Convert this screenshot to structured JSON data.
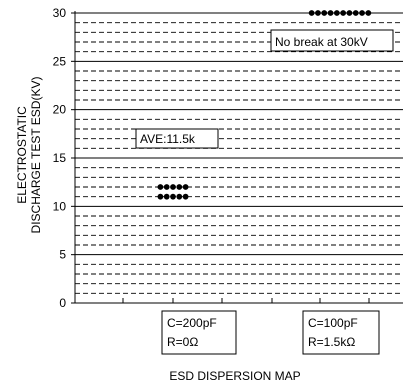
{
  "chart_data": {
    "type": "scatter",
    "title": "",
    "xlabel": "ESD DISPERSION MAP",
    "ylabel": [
      "ELECTROSTATIC",
      "DISCHARGE TEST ESD(KV)"
    ],
    "ylim": [
      0,
      30
    ],
    "yticks": [
      0,
      5,
      10,
      15,
      20,
      25,
      30
    ],
    "grid": {
      "major_solid_every": 5,
      "minor_dashed_every": 1
    },
    "conditions": [
      {
        "label_line1": "C=200pF",
        "label_line2": "R=0Ω"
      },
      {
        "label_line1": "C=100pF",
        "label_line2": "R=1.5kΩ"
      }
    ],
    "series": [
      {
        "values": [
          {
            "group": 0,
            "y": 12,
            "count": 5
          },
          {
            "group": 0,
            "y": 11,
            "count": 5
          }
        ]
      },
      {
        "values": [
          {
            "group": 1,
            "y": 30,
            "count": 10
          }
        ]
      }
    ],
    "annotations": [
      {
        "text": "AVE:11.5k",
        "group": 0,
        "y": 17
      },
      {
        "text": "No break at  30kV",
        "group": 1,
        "y": 28
      }
    ]
  }
}
